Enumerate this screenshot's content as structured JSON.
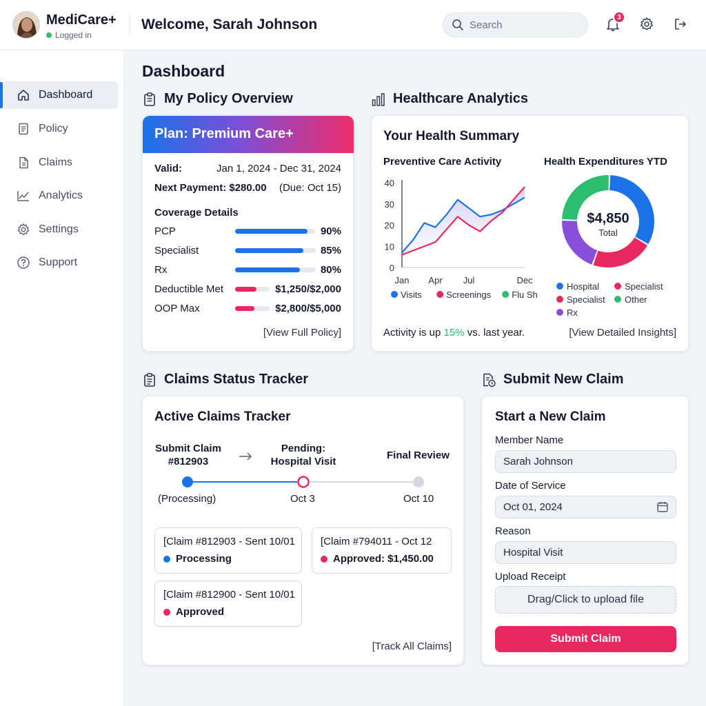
{
  "header": {
    "app_name": "MediCare+",
    "login_status": "Logged in",
    "welcome": "Welcome, Sarah Johnson",
    "search_placeholder": "Search",
    "notification_count": "3"
  },
  "sidebar": {
    "items": [
      {
        "label": "Dashboard",
        "icon": "home-icon",
        "active": true
      },
      {
        "label": "Policy",
        "icon": "document-icon"
      },
      {
        "label": "Claims",
        "icon": "file-icon"
      },
      {
        "label": "Analytics",
        "icon": "line-chart-icon"
      },
      {
        "label": "Settings",
        "icon": "gear-icon"
      },
      {
        "label": "Support",
        "icon": "help-icon"
      }
    ]
  },
  "page_title": "Dashboard",
  "policy": {
    "section_title": "My Policy Overview",
    "plan": "Plan: Premium Care+",
    "valid_label": "Valid:",
    "valid_value": "Jan 1, 2024 - Dec 31, 2024",
    "payment_label": "Next Payment: $280.00",
    "payment_due": "(Due: Oct 15)",
    "coverage_title": "Coverage Details",
    "coverage": [
      {
        "label": "PCP",
        "value": "90%",
        "fraction": 0.9,
        "color": "#1a73e8"
      },
      {
        "label": "Specialist",
        "value": "85%",
        "fraction": 0.85,
        "color": "#1a73e8"
      },
      {
        "label": "Rx",
        "value": "80%",
        "fraction": 0.8,
        "color": "#1a73e8"
      },
      {
        "label": "Deductible Met",
        "value": "$1,250/$2,000",
        "fraction": 0.625,
        "color": "#e8285f"
      },
      {
        "label": "OOP Max",
        "value": "$2,800/$5,000",
        "fraction": 0.56,
        "color": "#e8285f"
      }
    ],
    "link": "[View Full Policy]"
  },
  "analytics": {
    "section_title": "Healthcare Analytics",
    "card_title": "Your Health Summary",
    "line_title": "Preventive Care Activity",
    "donut_title": "Health Expenditures YTD",
    "donut_total": "$4,850",
    "donut_total_label": "Total",
    "activity_prefix": "Activity is up ",
    "activity_pct": "15%",
    "activity_suffix": " vs. last year.",
    "link": "[View Detailed Insights]"
  },
  "chart_data": [
    {
      "type": "line",
      "title": "Preventive Care Activity",
      "x_ticks": [
        "Jan",
        "Apr",
        "Jul",
        "Dec"
      ],
      "y_ticks": [
        0,
        10,
        20,
        30,
        40
      ],
      "ylim": [
        0,
        40
      ],
      "xlim": [
        0,
        11
      ],
      "grid": false,
      "legend_position": "bottom",
      "series": [
        {
          "name": "Visits",
          "color": "#1a73e8",
          "x": [
            0,
            1,
            2,
            3,
            4,
            5,
            6,
            7,
            8,
            9,
            10,
            11
          ],
          "values": [
            7,
            13,
            21,
            19,
            25,
            32,
            28,
            24,
            25,
            27,
            30,
            33
          ]
        },
        {
          "name": "Screenings",
          "color": "#e8285f",
          "x": [
            0,
            1,
            2,
            3,
            4,
            5,
            6,
            7,
            8,
            9,
            10,
            11
          ],
          "values": [
            6,
            8,
            10,
            12,
            18,
            24,
            20,
            17,
            22,
            26,
            32,
            38
          ]
        },
        {
          "name": "Flu Shot",
          "color": "#2dbd6e",
          "x": [],
          "values": []
        }
      ]
    },
    {
      "type": "pie",
      "title": "Health Expenditures YTD",
      "donut": true,
      "slices": [
        {
          "name": "Hospital",
          "value": 33,
          "color": "#1a73e8"
        },
        {
          "name": "Specialist",
          "value": 22,
          "color": "#e8285f"
        },
        {
          "name": "Rx",
          "value": 20,
          "color": "#8a4fd8"
        },
        {
          "name": "Other",
          "value": 25,
          "color": "#2dbd6e"
        }
      ]
    }
  ],
  "claims": {
    "section_title": "Claims Status Tracker",
    "card_title": "Active Claims Tracker",
    "step1_line1": "Submit Claim",
    "step1_line2": "#812903",
    "step1_sub": "(Processing)",
    "step2_line1": "Pending:",
    "step2_line2": "Hospital Visit",
    "step2_sub": "Oct 3",
    "step3_line1": "Final Review",
    "step3_sub": "Oct 10",
    "boxes": [
      {
        "title": "[Claim #812903 - Sent 10/01",
        "status": "Processing",
        "color": "#1a73e8"
      },
      {
        "title": "[Claim #794011 - Oct 12",
        "status": "Approved: $1,450.00",
        "color": "#e8285f"
      },
      {
        "title": "[Claim #812900 - Sent 10/01",
        "status": "Approved",
        "color": "#e8285f"
      }
    ],
    "link": "[Track All Claims]"
  },
  "new_claim": {
    "section_title": "Submit New Claim",
    "card_title": "Start a New Claim",
    "member_label": "Member Name",
    "member_value": "Sarah Johnson",
    "date_label": "Date of Service",
    "date_value": "Oct 01, 2024",
    "reason_label": "Reason",
    "reason_value": "Hospital Visit",
    "upload_label": "Upload Receipt",
    "upload_text": "Drag/Click to upload file",
    "submit": "Submit Claim"
  }
}
